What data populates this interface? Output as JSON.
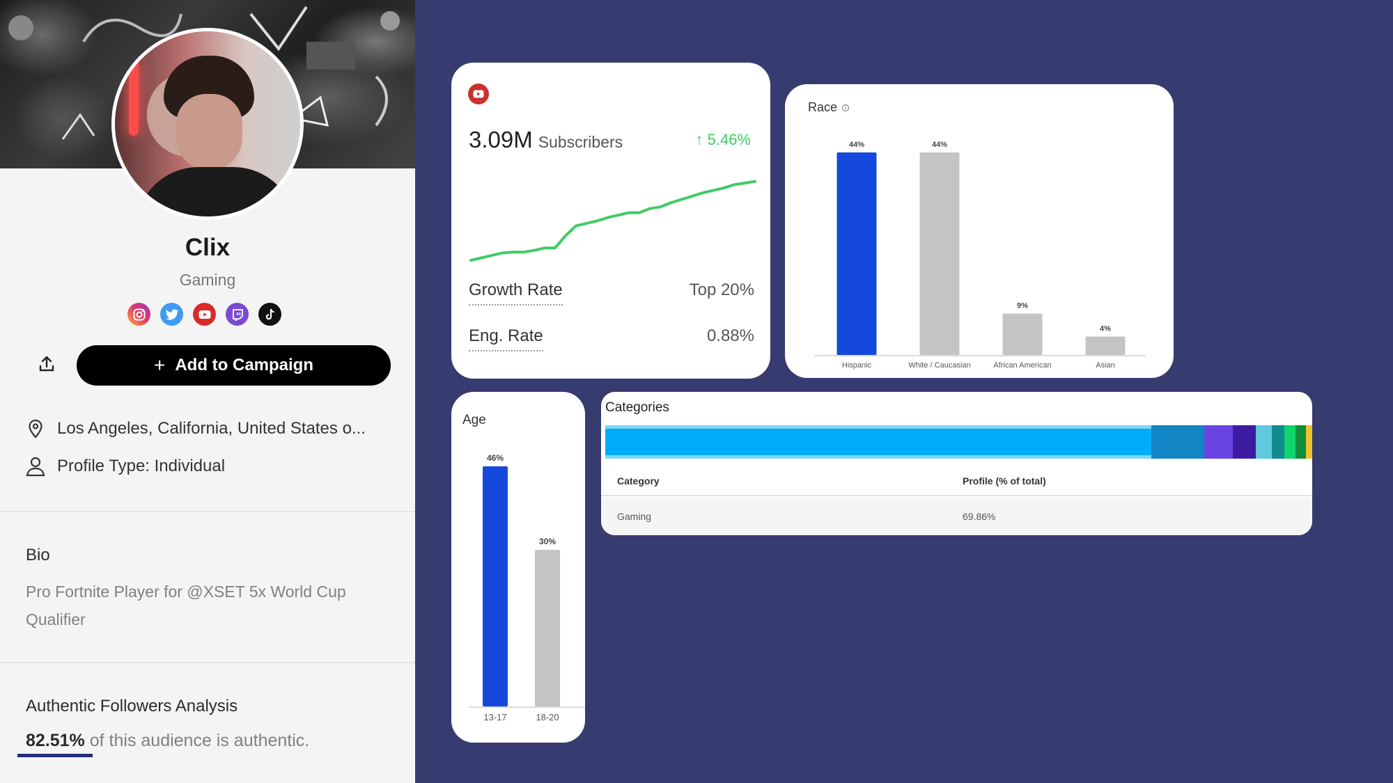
{
  "profile": {
    "name": "Clix",
    "niche": "Gaming",
    "socials": [
      "instagram-icon",
      "twitter-icon",
      "youtube-icon",
      "twitch-icon",
      "tiktok-icon"
    ],
    "add_button_label": "Add to Campaign",
    "location": "Los Angeles, California, United States o...",
    "profile_type": "Profile Type: Individual",
    "bio_title": "Bio",
    "bio_text": "Pro Fortnite Player for @XSET 5x World Cup Qualifier",
    "auth_title": "Authentic Followers Analysis",
    "auth_pct": "82.51%",
    "auth_text": " of this audience is authentic."
  },
  "youtube": {
    "subscribers": "3.09M",
    "subscribers_label": "Subscribers",
    "growth": "↑ 5.46%",
    "growth_rate_label": "Growth Rate",
    "growth_rate_value": "Top 20%",
    "eng_rate_label": "Eng. Rate",
    "eng_rate_value": "0.88%",
    "trend": [
      0.0,
      0.03,
      0.06,
      0.09,
      0.1,
      0.1,
      0.12,
      0.15,
      0.15,
      0.3,
      0.42,
      0.45,
      0.48,
      0.52,
      0.55,
      0.58,
      0.58,
      0.63,
      0.65,
      0.7,
      0.74,
      0.78,
      0.82,
      0.85,
      0.88,
      0.92,
      0.94,
      0.96
    ]
  },
  "chart_data": [
    {
      "type": "bar",
      "title": "Race",
      "categories": [
        "Hispanic",
        "White / Caucasian",
        "African American",
        "Asian"
      ],
      "values": [
        44,
        44,
        9,
        4
      ],
      "labels": [
        "44%",
        "44%",
        "9%",
        "4%"
      ],
      "highlight_index": 0,
      "ylim": [
        0,
        44
      ]
    },
    {
      "type": "bar",
      "title": "Age",
      "categories": [
        "13-17",
        "18-20"
      ],
      "values": [
        46,
        30
      ],
      "labels": [
        "46%",
        "30%"
      ],
      "highlight_index": 0,
      "ylim": [
        0,
        46
      ]
    }
  ],
  "categories": {
    "title": "Categories",
    "col_category": "Category",
    "col_profile": "Profile (% of total)",
    "rows": [
      {
        "category": "Gaming",
        "profile": "69.86%"
      }
    ],
    "segments": [
      {
        "share": 69.86,
        "color": "#00adfa"
      },
      {
        "share": 6.8,
        "color": "#1286c4"
      },
      {
        "share": 3.6,
        "color": "#6a45e3"
      },
      {
        "share": 3.0,
        "color": "#3e1ba3"
      },
      {
        "share": 2.0,
        "color": "#5fc8dc"
      },
      {
        "share": 1.6,
        "color": "#138a8f"
      },
      {
        "share": 1.5,
        "color": "#0ed66d"
      },
      {
        "share": 1.3,
        "color": "#0f8f3c"
      },
      {
        "share": 0.8,
        "color": "#f2c22c"
      }
    ],
    "colors": {
      "highlight": "#1449db",
      "muted": "#c4c4c4",
      "growth": "#3fcc63",
      "accent": "#242e7a"
    }
  }
}
